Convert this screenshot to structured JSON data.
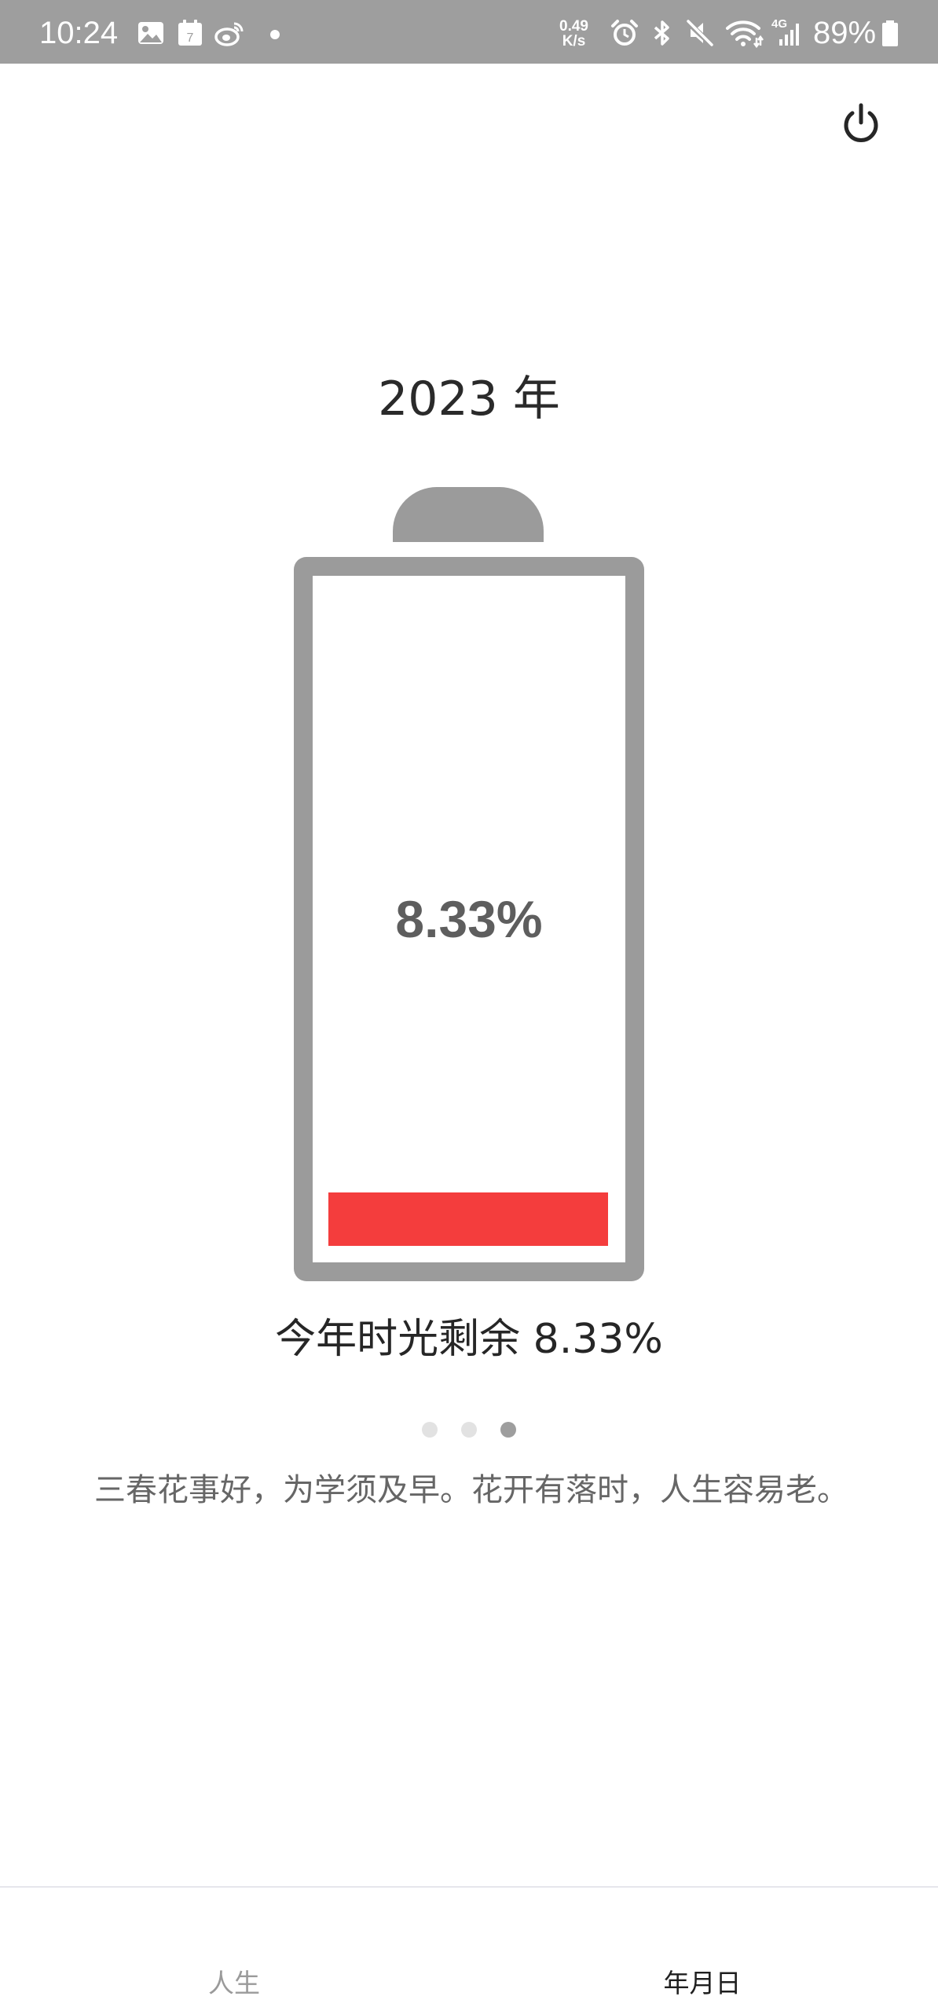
{
  "status_bar": {
    "time": "10:24",
    "net_speed_value": "0.49",
    "net_speed_unit": "K/s",
    "net_type": "4G",
    "battery_percent": "89%",
    "icons": [
      "gallery-icon",
      "calendar-icon",
      "weibo-icon",
      "dot-icon",
      "alarm-icon",
      "bluetooth-icon",
      "mute-icon",
      "wifi-icon",
      "signal-icon",
      "battery-icon"
    ],
    "calendar_day": "7"
  },
  "header": {
    "power_icon": "power-icon"
  },
  "main": {
    "year_title": "2023 年",
    "battery_percent_label": "8.33%",
    "remaining_fraction": 0.0833,
    "fill_color": "#f43d3d",
    "remain_text": "今年时光剩余 8.33%",
    "page_dots": {
      "count": 3,
      "active_index": 2
    },
    "quote": "三春花事好，为学须及早。花开有落时，人生容易老。"
  },
  "bottom_nav": {
    "tabs": [
      {
        "label": "人生",
        "active": false
      },
      {
        "label": "年月日",
        "active": true
      }
    ]
  }
}
